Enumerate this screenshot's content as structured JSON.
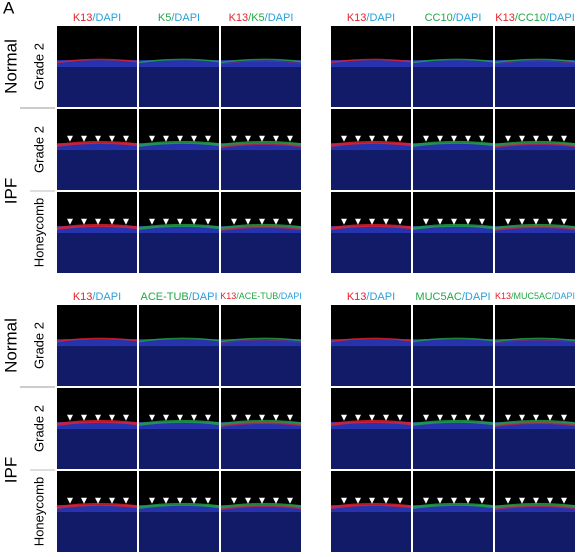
{
  "panel_label": "A",
  "blocks": [
    {
      "row_groups": [
        {
          "label": "Normal",
          "rows": [
            "Grade 2"
          ]
        },
        {
          "label": "IPF",
          "rows": [
            "Grade 2",
            "Honeycomb"
          ]
        }
      ],
      "panels": [
        {
          "headers": [
            [
              {
                "t": "K13",
                "c": "#e8202a"
              },
              {
                "t": "/DAPI",
                "c": "#2a9fd8"
              }
            ],
            [
              {
                "t": "K5",
                "c": "#22a845"
              },
              {
                "t": "/DAPI",
                "c": "#2a9fd8"
              }
            ],
            [
              {
                "t": "K13",
                "c": "#e8202a"
              },
              {
                "t": "/K5",
                "c": "#22a845"
              },
              {
                "t": "/DAPI",
                "c": "#2a9fd8"
              }
            ]
          ]
        },
        {
          "headers": [
            [
              {
                "t": "K13",
                "c": "#e8202a"
              },
              {
                "t": "/DAPI",
                "c": "#2a9fd8"
              }
            ],
            [
              {
                "t": "CC10",
                "c": "#22a845"
              },
              {
                "t": "/DAPI",
                "c": "#2a9fd8"
              }
            ],
            [
              {
                "t": "K13",
                "c": "#e8202a"
              },
              {
                "t": "/CC10",
                "c": "#22a845"
              },
              {
                "t": "/DAPI",
                "c": "#2a9fd8"
              }
            ]
          ]
        }
      ]
    },
    {
      "row_groups": [
        {
          "label": "Normal",
          "rows": [
            "Grade 2"
          ]
        },
        {
          "label": "IPF",
          "rows": [
            "Grade 2",
            "Honeycomb"
          ]
        }
      ],
      "panels": [
        {
          "headers": [
            [
              {
                "t": "K13",
                "c": "#e8202a"
              },
              {
                "t": "/DAPI",
                "c": "#2a9fd8"
              }
            ],
            [
              {
                "t": "ACE-TUB",
                "c": "#22a845"
              },
              {
                "t": "/DAPI",
                "c": "#2a9fd8"
              }
            ],
            [
              {
                "t": "K13",
                "c": "#e8202a"
              },
              {
                "t": "/ACE-TUB",
                "c": "#22a845"
              },
              {
                "t": "/DAPI",
                "c": "#2a9fd8"
              }
            ]
          ]
        },
        {
          "headers": [
            [
              {
                "t": "K13",
                "c": "#e8202a"
              },
              {
                "t": "/DAPI",
                "c": "#2a9fd8"
              }
            ],
            [
              {
                "t": "MUC5AC",
                "c": "#22a845"
              },
              {
                "t": "/DAPI",
                "c": "#2a9fd8"
              }
            ],
            [
              {
                "t": "K13",
                "c": "#e8202a"
              },
              {
                "t": "/MUC5AC",
                "c": "#22a845"
              },
              {
                "t": "/DAPI",
                "c": "#2a9fd8"
              }
            ]
          ]
        }
      ]
    }
  ]
}
